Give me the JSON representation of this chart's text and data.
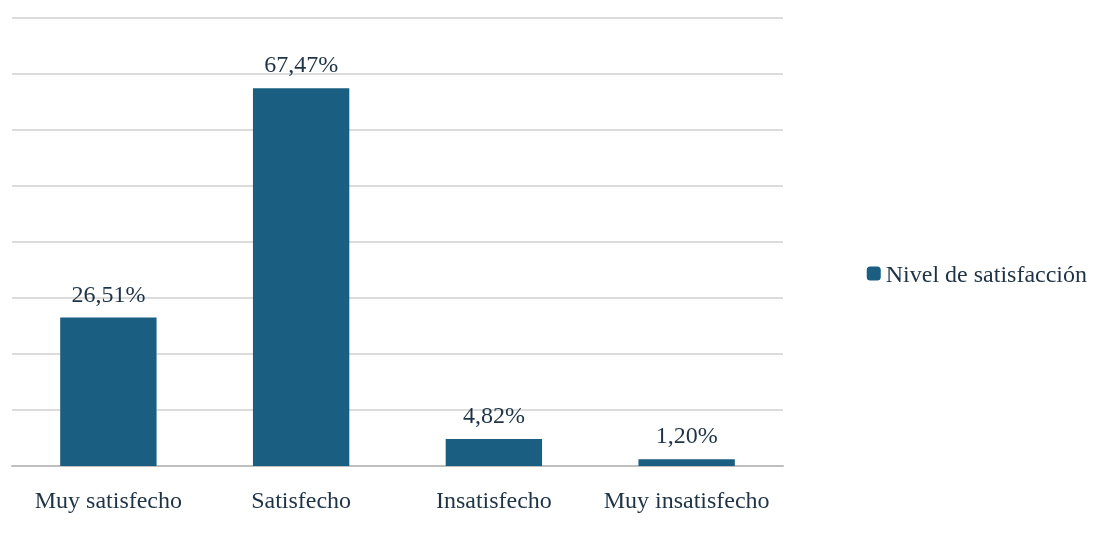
{
  "chart_data": {
    "type": "bar",
    "categories": [
      "Muy satisfecho",
      "Satisfecho",
      "Insatisfecho",
      "Muy insatisfecho"
    ],
    "series": [
      {
        "name": "Nivel de satisfacción",
        "color": "#1a5f82",
        "values": [
          26.51,
          67.47,
          4.82,
          1.2
        ],
        "value_labels": [
          "26,51%",
          "67,47%",
          "4,82%",
          "1,20%"
        ]
      }
    ],
    "ylim": [
      0,
      80
    ],
    "yticks": [
      {
        "value": 0,
        "label": null
      },
      {
        "value": 10,
        "label": null
      },
      {
        "value": 20,
        "label": null
      },
      {
        "value": 30,
        "label": null
      },
      {
        "value": 40,
        "label": null
      },
      {
        "value": 50,
        "label": null
      },
      {
        "value": 60,
        "label": null
      },
      {
        "value": 70,
        "label": null
      },
      {
        "value": 80,
        "label": null
      }
    ],
    "tick_labels": "x",
    "grid": "y",
    "legend": "right"
  }
}
